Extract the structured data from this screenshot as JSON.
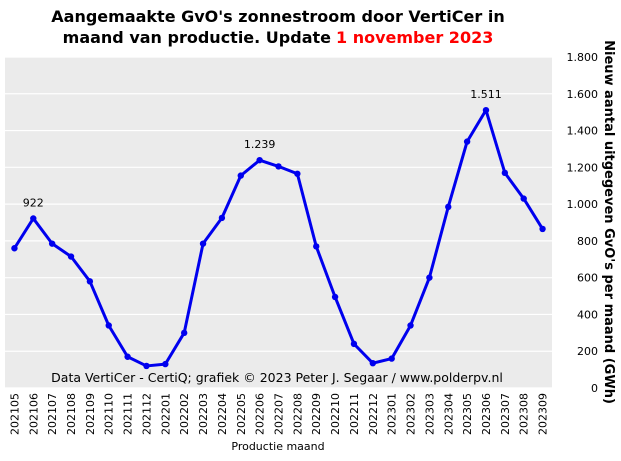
{
  "chart_data": {
    "type": "line",
    "title_lines": [
      "Aangemaakte GvO's zonnestroom door VertiCer in",
      "maand van productie. Update"
    ],
    "title_date": "1 november 2023",
    "title_date_color": "#ff0000",
    "x_label": "Productie maand",
    "y_label": "Nieuw aantal uitgegeven GvO's per maand (GWh)",
    "annotation": "Data VertiCer - CertiQ; grafiek © 2023 Peter J. Segaar / www.polderpv.nl",
    "categories": [
      "202105",
      "202106",
      "202107",
      "202108",
      "202109",
      "202110",
      "202111",
      "202112",
      "202201",
      "202202",
      "202203",
      "202204",
      "202205",
      "202206",
      "202207",
      "202208",
      "202209",
      "202210",
      "202211",
      "202212",
      "202301",
      "202302",
      "202303",
      "202304",
      "202305",
      "202306",
      "202307",
      "202308",
      "202309"
    ],
    "values": [
      760,
      922,
      785,
      715,
      580,
      340,
      170,
      120,
      130,
      300,
      785,
      925,
      1155,
      1239,
      1205,
      1165,
      770,
      495,
      240,
      135,
      160,
      340,
      600,
      985,
      1340,
      1511,
      1170,
      1030,
      865
    ],
    "value_labels": [
      null,
      "922",
      null,
      null,
      null,
      null,
      null,
      null,
      null,
      null,
      null,
      null,
      null,
      "1.239",
      null,
      null,
      null,
      null,
      null,
      null,
      null,
      null,
      null,
      null,
      null,
      "1.511",
      null,
      null,
      null
    ],
    "color": "#0000ee",
    "ylim": [
      0,
      1800
    ],
    "yticks": [
      0,
      200,
      400,
      600,
      800,
      {
        "value": 1000,
        "label": "1.000"
      },
      {
        "value": 1200,
        "label": "1.200"
      },
      {
        "value": 1400,
        "label": "1.400"
      },
      {
        "value": 1600,
        "label": "1.600"
      },
      {
        "value": 1800,
        "label": "1.800"
      }
    ],
    "y_axis_side": "right",
    "grid": true
  }
}
